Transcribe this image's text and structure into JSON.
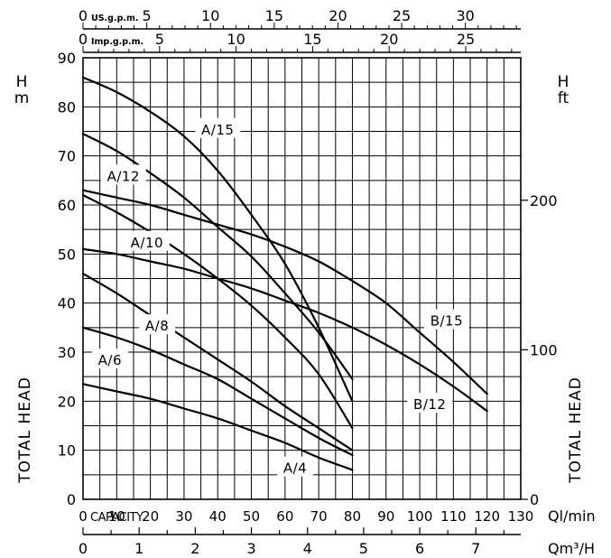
{
  "chart_data": {
    "type": "line",
    "x_axis_main": {
      "unit_label": "Ql/min",
      "caption": "CAPACITY",
      "range": [
        0,
        130
      ],
      "ticks": [
        0,
        10,
        20,
        30,
        40,
        50,
        60,
        70,
        80,
        90,
        100,
        110,
        120,
        130
      ]
    },
    "x_axis_m3h": {
      "unit_label": "Qm³/H",
      "ticks": [
        0,
        1,
        2,
        3,
        4,
        5,
        6,
        7
      ]
    },
    "x_axis_usgpm": {
      "unit_label": "US.g.p.m.",
      "ticks": [
        0,
        5,
        10,
        15,
        20,
        25,
        30
      ]
    },
    "x_axis_impgpm": {
      "unit_label": "Imp.g.p.m.",
      "ticks": [
        0,
        5,
        10,
        15,
        20,
        25
      ]
    },
    "y_axis_left": {
      "unit_h": "H",
      "unit_m": "m",
      "title": "TOTAL HEAD",
      "range": [
        0,
        90
      ],
      "ticks": [
        0,
        10,
        20,
        30,
        40,
        50,
        60,
        70,
        80,
        90
      ]
    },
    "y_axis_right": {
      "unit_h": "H",
      "unit_ft": "ft",
      "title": "TOTAL HEAD",
      "ticks": [
        0,
        100,
        200
      ]
    },
    "grid": true,
    "series": [
      {
        "name": "A/15",
        "label": "A/15",
        "x": [
          0,
          10,
          20,
          30,
          40,
          50,
          60,
          70,
          80
        ],
        "y": [
          86,
          83,
          79,
          74,
          67,
          58,
          48,
          35,
          20
        ]
      },
      {
        "name": "A/12",
        "label": "A/12",
        "x": [
          0,
          10,
          20,
          30,
          40,
          50,
          60,
          70,
          80
        ],
        "y": [
          74.5,
          71,
          66.5,
          61.5,
          55.5,
          49.5,
          42,
          34,
          24.5
        ]
      },
      {
        "name": "A/10",
        "label": "A/10",
        "x": [
          0,
          10,
          20,
          30,
          40,
          50,
          60,
          70,
          80
        ],
        "y": [
          62,
          58.5,
          54.5,
          50,
          45,
          39.5,
          33,
          25.5,
          14.5
        ]
      },
      {
        "name": "A/8",
        "label": "A/8",
        "x": [
          0,
          10,
          20,
          30,
          40,
          50,
          60,
          70,
          80
        ],
        "y": [
          46,
          42,
          37.5,
          33,
          28.5,
          24,
          19,
          14.5,
          10
        ]
      },
      {
        "name": "A/6",
        "label": "A/6",
        "x": [
          0,
          10,
          20,
          30,
          40,
          50,
          60,
          70,
          80
        ],
        "y": [
          35,
          33,
          30.5,
          27.5,
          24.5,
          20.5,
          16.5,
          12.5,
          9
        ]
      },
      {
        "name": "A/4",
        "label": "A/4",
        "x": [
          0,
          10,
          20,
          30,
          40,
          50,
          60,
          70,
          80
        ],
        "y": [
          23.5,
          22,
          20.5,
          18.5,
          16.5,
          14,
          11.5,
          8.5,
          6
        ]
      },
      {
        "name": "B/15",
        "label": "B/15",
        "x": [
          0,
          10,
          20,
          30,
          40,
          50,
          60,
          70,
          80,
          90,
          100,
          110,
          120
        ],
        "y": [
          63,
          61.5,
          60,
          58,
          56,
          54,
          51.5,
          48.5,
          44.5,
          40,
          34,
          28,
          21.5
        ]
      },
      {
        "name": "B/12",
        "label": "B/12",
        "x": [
          0,
          10,
          20,
          30,
          40,
          50,
          60,
          70,
          80,
          90,
          100,
          110,
          120
        ],
        "y": [
          51,
          50,
          48.5,
          47,
          45,
          43,
          40.5,
          38,
          35,
          31.5,
          27.5,
          23,
          18
        ]
      }
    ],
    "series_labels": [
      {
        "text": "A/15",
        "x": 40,
        "y": 75.5
      },
      {
        "text": "A/12",
        "x": 12,
        "y": 66
      },
      {
        "text": "A/10",
        "x": 19,
        "y": 52.5
      },
      {
        "text": "A/8",
        "x": 22,
        "y": 35.5
      },
      {
        "text": "A/6",
        "x": 8,
        "y": 28.5
      },
      {
        "text": "A/4",
        "x": 63,
        "y": 6.5
      },
      {
        "text": "B/15",
        "x": 108,
        "y": 36.5
      },
      {
        "text": "B/12",
        "x": 103,
        "y": 19.5
      }
    ]
  }
}
